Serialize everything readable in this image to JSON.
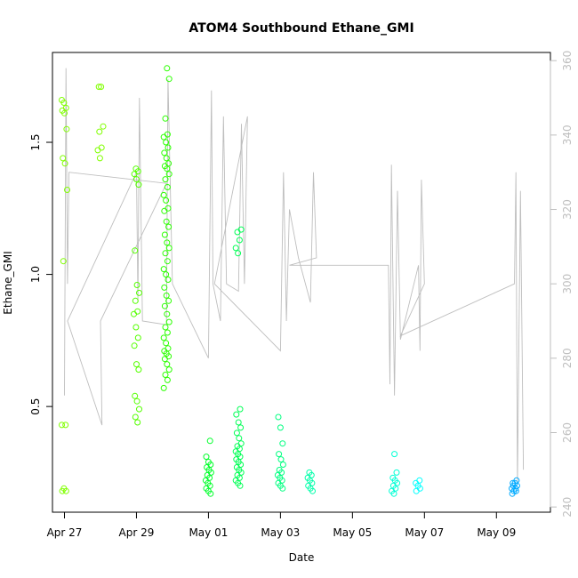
{
  "chart_data": {
    "type": "scatter",
    "title": "ATOM4 Southbound Ethane_GMI",
    "xlabel": "Date",
    "ylabel": "Ethane_GMI",
    "x_axis": {
      "type": "date",
      "range": [
        "2018-04-26T16:00",
        "2018-05-10T12:00"
      ],
      "ticks": [
        {
          "value": "2018-04-27",
          "label": "Apr 27"
        },
        {
          "value": "2018-04-29",
          "label": "Apr 29"
        },
        {
          "value": "2018-05-01",
          "label": "May 01"
        },
        {
          "value": "2018-05-03",
          "label": "May 03"
        },
        {
          "value": "2018-05-05",
          "label": "May 05"
        },
        {
          "value": "2018-05-07",
          "label": "May 07"
        },
        {
          "value": "2018-05-09",
          "label": "May 09"
        }
      ]
    },
    "y_axis": {
      "range": [
        0.1,
        1.84
      ],
      "ticks": [
        {
          "value": 0.5,
          "label": "0.5"
        },
        {
          "value": 1.0,
          "label": "1.0"
        },
        {
          "value": 1.5,
          "label": "1.5"
        }
      ]
    },
    "y2_axis": {
      "range": [
        238.6,
        362.2
      ],
      "color": "#bebebe",
      "ticks": [
        {
          "value": 240,
          "label": "240"
        },
        {
          "value": 260,
          "label": "260"
        },
        {
          "value": 280,
          "label": "280"
        },
        {
          "value": 300,
          "label": "300"
        },
        {
          "value": 320,
          "label": "320"
        },
        {
          "value": 340,
          "label": "340"
        },
        {
          "value": 360,
          "label": "360"
        }
      ]
    },
    "grid": false,
    "legend": "none",
    "point_clusters": [
      {
        "date": "2018-04-27T00:00",
        "color": "#80ff00",
        "values": [
          1.66,
          1.65,
          1.63,
          1.62,
          1.61,
          1.55,
          1.44,
          1.42,
          1.32,
          1.05,
          0.43,
          0.43,
          0.19,
          0.18,
          0.18
        ]
      },
      {
        "date": "2018-04-28T00:00",
        "color": "#80ff00",
        "values": [
          1.71,
          1.71,
          1.56,
          1.54,
          1.48,
          1.47,
          1.44
        ]
      },
      {
        "date": "2018-04-29T00:00",
        "color": "#55ff00",
        "values": [
          1.4,
          1.39,
          1.38,
          1.36,
          1.34,
          1.09,
          0.96,
          0.93,
          0.9,
          0.86,
          0.85,
          0.8,
          0.76,
          0.73,
          0.66,
          0.64,
          0.54,
          0.52,
          0.49,
          0.46,
          0.44
        ]
      },
      {
        "date": "2018-04-29T20:00",
        "color": "#2bff00",
        "values": [
          1.78,
          1.74,
          1.59,
          1.53,
          1.52,
          1.5,
          1.48,
          1.46,
          1.44,
          1.42,
          1.41,
          1.4,
          1.38,
          1.36,
          1.33,
          1.3,
          1.28,
          1.25,
          1.24,
          1.2,
          1.18,
          1.15,
          1.12,
          1.1,
          1.08,
          1.05,
          1.02,
          1.0,
          0.98,
          0.95,
          0.92,
          0.9,
          0.88,
          0.85,
          0.82,
          0.8,
          0.78,
          0.76,
          0.74,
          0.72,
          0.71,
          0.7,
          0.69,
          0.68,
          0.66,
          0.64,
          0.62,
          0.6,
          0.57
        ]
      },
      {
        "date": "2018-05-01T00:00",
        "color": "#00ff2b",
        "values": [
          0.37,
          0.31,
          0.29,
          0.28,
          0.27,
          0.26,
          0.25,
          0.24,
          0.23,
          0.22,
          0.21,
          0.2,
          0.19,
          0.18,
          0.17
        ]
      },
      {
        "date": "2018-05-01T20:00",
        "color": "#00ff55",
        "values": [
          1.17,
          1.16,
          1.13,
          1.1,
          1.08,
          0.49,
          0.47,
          0.44,
          0.42,
          0.4,
          0.38,
          0.36,
          0.35,
          0.34,
          0.33,
          0.32,
          0.31,
          0.3,
          0.29,
          0.28,
          0.27,
          0.26,
          0.25,
          0.24,
          0.23,
          0.22,
          0.21,
          0.2
        ]
      },
      {
        "date": "2018-05-03T00:00",
        "color": "#00ff80",
        "values": [
          0.46,
          0.42,
          0.36,
          0.32,
          0.3,
          0.28,
          0.26,
          0.25,
          0.24,
          0.23,
          0.22,
          0.21,
          0.2,
          0.19
        ]
      },
      {
        "date": "2018-05-03T20:00",
        "color": "#00ffaa",
        "values": [
          0.25,
          0.24,
          0.23,
          0.22,
          0.21,
          0.2,
          0.19,
          0.18
        ]
      },
      {
        "date": "2018-05-06T04:00",
        "color": "#00ffd5",
        "values": [
          0.32,
          0.25,
          0.23,
          0.22,
          0.21,
          0.2,
          0.19,
          0.18,
          0.17
        ]
      },
      {
        "date": "2018-05-06T20:00",
        "color": "#00ffff",
        "values": [
          0.22,
          0.21,
          0.2,
          0.19,
          0.18
        ]
      },
      {
        "date": "2018-05-09T12:00",
        "color": "#00aaff",
        "values": [
          0.22,
          0.21,
          0.21,
          0.2,
          0.2,
          0.19,
          0.19,
          0.18,
          0.18,
          0.17
        ]
      }
    ],
    "secondary_line": {
      "color": "#bebebe",
      "axis": "y2",
      "points": [
        {
          "date": "2018-04-27T00:00",
          "value": 270
        },
        {
          "date": "2018-04-27T01:00",
          "value": 358
        },
        {
          "date": "2018-04-27T02:00",
          "value": 300
        },
        {
          "date": "2018-04-27T03:00",
          "value": 330
        },
        {
          "date": "2018-04-29T20:00",
          "value": 327
        },
        {
          "date": "2018-04-28T00:00",
          "value": 290
        },
        {
          "date": "2018-04-28T01:00",
          "value": 262
        },
        {
          "date": "2018-04-27T02:00",
          "value": 290
        },
        {
          "date": "2018-04-29T00:00",
          "value": 330
        },
        {
          "date": "2018-04-29T01:00",
          "value": 295
        },
        {
          "date": "2018-04-29T02:00",
          "value": 350
        },
        {
          "date": "2018-04-29T04:00",
          "value": 290
        },
        {
          "date": "2018-04-29T20:00",
          "value": 289
        },
        {
          "date": "2018-04-29T21:00",
          "value": 355
        },
        {
          "date": "2018-04-30T00:00",
          "value": 300
        },
        {
          "date": "2018-05-01T00:00",
          "value": 280
        },
        {
          "date": "2018-05-01T02:00",
          "value": 352
        },
        {
          "date": "2018-05-01T03:00",
          "value": 300
        },
        {
          "date": "2018-05-01T08:00",
          "value": 290
        },
        {
          "date": "2018-05-01T10:00",
          "value": 345
        },
        {
          "date": "2018-05-01T12:00",
          "value": 300
        },
        {
          "date": "2018-05-01T20:00",
          "value": 298
        },
        {
          "date": "2018-05-01T22:00",
          "value": 343
        },
        {
          "date": "2018-05-02T00:00",
          "value": 300
        },
        {
          "date": "2018-05-02T02:00",
          "value": 345
        },
        {
          "date": "2018-05-01T04:00",
          "value": 300
        },
        {
          "date": "2018-05-03T00:00",
          "value": 282
        },
        {
          "date": "2018-05-03T02:00",
          "value": 330
        },
        {
          "date": "2018-05-03T04:00",
          "value": 290
        },
        {
          "date": "2018-05-03T06:00",
          "value": 320
        },
        {
          "date": "2018-05-03T12:00",
          "value": 307
        },
        {
          "date": "2018-05-03T20:00",
          "value": 295
        },
        {
          "date": "2018-05-03T22:00",
          "value": 330
        },
        {
          "date": "2018-05-04T00:00",
          "value": 307
        },
        {
          "date": "2018-05-03T06:00",
          "value": 305
        },
        {
          "date": "2018-05-06T00:00",
          "value": 305
        },
        {
          "date": "2018-05-06T01:00",
          "value": 273
        },
        {
          "date": "2018-05-06T02:00",
          "value": 332
        },
        {
          "date": "2018-05-06T04:00",
          "value": 270
        },
        {
          "date": "2018-05-06T06:00",
          "value": 325
        },
        {
          "date": "2018-05-06T08:00",
          "value": 285
        },
        {
          "date": "2018-05-06T20:00",
          "value": 305
        },
        {
          "date": "2018-05-06T21:00",
          "value": 282
        },
        {
          "date": "2018-05-06T22:00",
          "value": 328
        },
        {
          "date": "2018-05-07T00:00",
          "value": 300
        },
        {
          "date": "2018-05-06T08:00",
          "value": 286
        },
        {
          "date": "2018-05-09T12:00",
          "value": 300
        },
        {
          "date": "2018-05-09T13:00",
          "value": 330
        },
        {
          "date": "2018-05-09T14:00",
          "value": 246
        },
        {
          "date": "2018-05-09T16:00",
          "value": 325
        },
        {
          "date": "2018-05-09T18:00",
          "value": 250
        }
      ]
    }
  }
}
